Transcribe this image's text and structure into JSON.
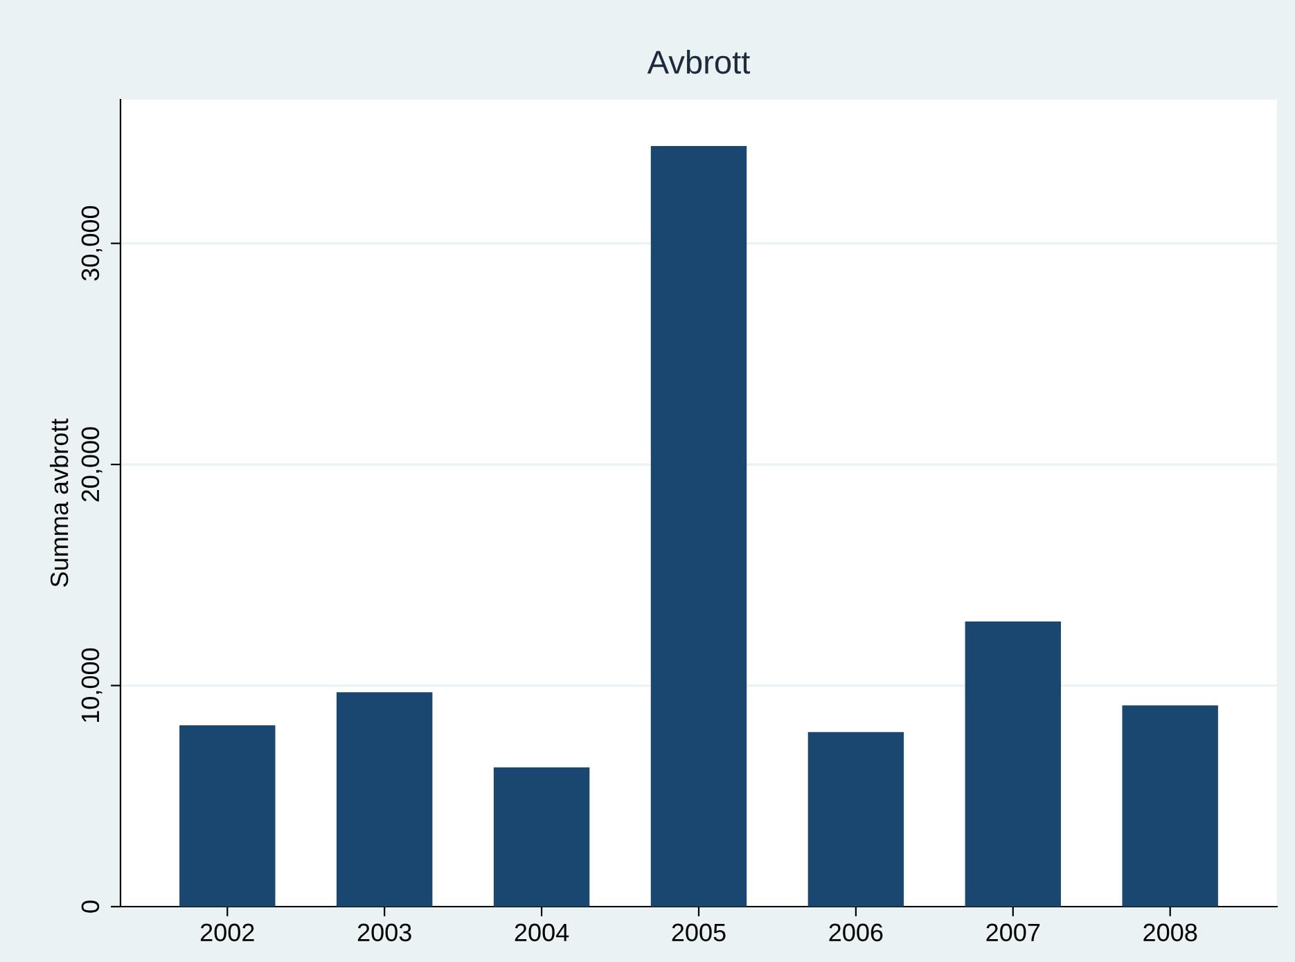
{
  "chart_data": {
    "type": "bar",
    "title": "Avbrott",
    "ylabel": "Summa avbrott",
    "categories": [
      "2002",
      "2003",
      "2004",
      "2005",
      "2006",
      "2007",
      "2008"
    ],
    "values": [
      8200,
      9700,
      6300,
      34400,
      7900,
      12900,
      9100
    ],
    "color": "#1a476f",
    "ylim": [
      0,
      36500
    ],
    "yticks": [
      0,
      {
        "value": 10000,
        "label": "10,000"
      },
      {
        "value": 20000,
        "label": "20,000"
      },
      {
        "value": 30000,
        "label": "30,000"
      }
    ],
    "grid": "y"
  }
}
